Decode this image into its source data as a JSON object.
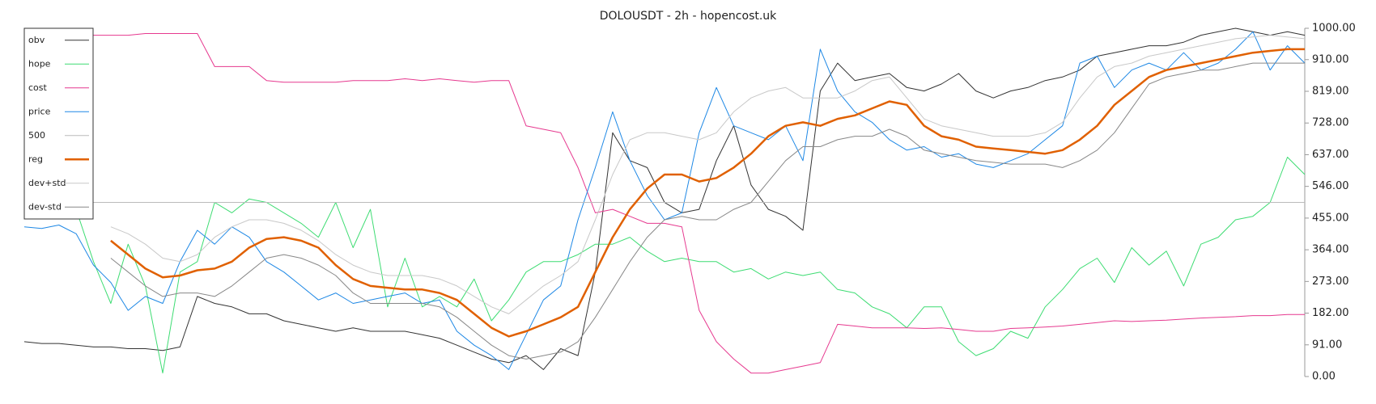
{
  "chart_data": {
    "type": "line",
    "title": "DOLOUSDT - 2h - hopencost.uk",
    "ylim": [
      0,
      1000
    ],
    "yticks": [
      {
        "value": 0,
        "label": "0.00"
      },
      {
        "value": 91,
        "label": "91.00"
      },
      {
        "value": 182,
        "label": "182.00"
      },
      {
        "value": 273,
        "label": "273.00"
      },
      {
        "value": 364,
        "label": "364.00"
      },
      {
        "value": 455,
        "label": "455.00"
      },
      {
        "value": 546,
        "label": "546.00"
      },
      {
        "value": 637,
        "label": "637.00"
      },
      {
        "value": 728,
        "label": "728.00"
      },
      {
        "value": 819,
        "label": "819.00"
      },
      {
        "value": 910,
        "label": "910.00"
      },
      {
        "value": 1000,
        "label": "1000.00"
      }
    ],
    "legend": "upper left",
    "series": [
      {
        "name": "obv",
        "color": "#333333",
        "width": 1,
        "values": [
          100,
          95,
          95,
          90,
          85,
          85,
          80,
          80,
          75,
          85,
          230,
          210,
          200,
          180,
          180,
          160,
          150,
          140,
          130,
          140,
          130,
          130,
          130,
          120,
          110,
          90,
          70,
          50,
          40,
          60,
          20,
          80,
          60,
          300,
          700,
          620,
          600,
          500,
          470,
          480,
          620,
          720,
          550,
          480,
          460,
          420,
          820,
          900,
          850,
          860,
          870,
          830,
          820,
          840,
          870,
          820,
          800,
          820,
          830,
          850,
          860,
          880,
          920,
          930,
          940,
          950,
          950,
          960,
          980,
          990,
          1000,
          990,
          980,
          990,
          980
        ]
      },
      {
        "name": "hope",
        "color": "#3ddc72",
        "width": 1,
        "values": [
          null,
          null,
          null,
          480,
          330,
          210,
          380,
          260,
          10,
          300,
          330,
          500,
          470,
          510,
          500,
          470,
          440,
          400,
          500,
          370,
          480,
          200,
          340,
          200,
          230,
          200,
          280,
          160,
          220,
          300,
          330,
          330,
          350,
          380,
          380,
          400,
          360,
          330,
          340,
          330,
          330,
          300,
          310,
          280,
          300,
          290,
          300,
          250,
          240,
          200,
          180,
          140,
          200,
          200,
          100,
          60,
          80,
          130,
          110,
          200,
          250,
          310,
          340,
          270,
          370,
          320,
          360,
          260,
          380,
          400,
          450,
          460,
          500,
          630,
          580
        ]
      },
      {
        "name": "cost",
        "color": "#e6398f",
        "width": 1,
        "values": [
          null,
          null,
          null,
          null,
          980,
          980,
          980,
          985,
          985,
          985,
          985,
          890,
          890,
          890,
          850,
          845,
          845,
          845,
          845,
          850,
          850,
          850,
          855,
          850,
          855,
          850,
          845,
          850,
          850,
          720,
          710,
          700,
          600,
          470,
          480,
          460,
          440,
          440,
          430,
          190,
          100,
          50,
          10,
          10,
          20,
          30,
          40,
          150,
          145,
          140,
          140,
          140,
          138,
          140,
          135,
          130,
          130,
          138,
          140,
          142,
          145,
          150,
          155,
          160,
          158,
          160,
          162,
          165,
          168,
          170,
          172,
          175,
          175,
          178,
          178
        ]
      },
      {
        "name": "price",
        "color": "#1e88e5",
        "width": 1,
        "values": [
          430,
          425,
          435,
          410,
          320,
          270,
          190,
          230,
          210,
          330,
          420,
          380,
          430,
          400,
          330,
          300,
          260,
          220,
          240,
          210,
          220,
          230,
          240,
          210,
          220,
          130,
          90,
          60,
          20,
          120,
          220,
          260,
          450,
          600,
          760,
          620,
          520,
          450,
          470,
          700,
          830,
          720,
          700,
          680,
          720,
          620,
          940,
          820,
          760,
          730,
          680,
          650,
          660,
          630,
          640,
          610,
          600,
          620,
          640,
          680,
          720,
          900,
          920,
          830,
          880,
          900,
          880,
          930,
          880,
          900,
          940,
          990,
          880,
          950,
          900
        ]
      },
      {
        "name": "500",
        "color": "#bbbbbb",
        "width": 1,
        "values": [
          500,
          500,
          500,
          500,
          500,
          500,
          500,
          500,
          500,
          500,
          500,
          500,
          500,
          500,
          500,
          500,
          500,
          500,
          500,
          500,
          500,
          500,
          500,
          500,
          500,
          500,
          500,
          500,
          500,
          500,
          500,
          500,
          500,
          500,
          500,
          500,
          500,
          500,
          500,
          500,
          500,
          500,
          500,
          500,
          500,
          500,
          500,
          500,
          500,
          500,
          500,
          500,
          500,
          500,
          500,
          500,
          500,
          500,
          500,
          500,
          500,
          500,
          500,
          500,
          500,
          500,
          500,
          500,
          500,
          500,
          500,
          500,
          500,
          500,
          500
        ]
      },
      {
        "name": "reg",
        "color": "#e06000",
        "width": 2.5,
        "values": [
          null,
          null,
          null,
          null,
          null,
          390,
          350,
          310,
          285,
          290,
          305,
          310,
          330,
          370,
          395,
          400,
          390,
          370,
          320,
          280,
          260,
          255,
          250,
          250,
          240,
          220,
          180,
          140,
          115,
          130,
          150,
          170,
          200,
          300,
          400,
          480,
          540,
          580,
          580,
          560,
          570,
          600,
          640,
          690,
          720,
          730,
          720,
          740,
          750,
          770,
          790,
          780,
          720,
          690,
          680,
          660,
          655,
          650,
          645,
          640,
          650,
          680,
          720,
          780,
          820,
          860,
          880,
          890,
          900,
          910,
          920,
          930,
          935,
          940,
          940
        ]
      },
      {
        "name": "dev+std",
        "color": "#c8c8c8",
        "width": 1,
        "values": [
          null,
          null,
          null,
          null,
          null,
          430,
          410,
          380,
          340,
          330,
          350,
          400,
          430,
          450,
          450,
          440,
          420,
          390,
          350,
          320,
          300,
          290,
          290,
          290,
          280,
          260,
          230,
          200,
          180,
          220,
          260,
          290,
          330,
          450,
          580,
          680,
          700,
          700,
          690,
          680,
          700,
          760,
          800,
          820,
          830,
          800,
          800,
          800,
          820,
          850,
          860,
          800,
          740,
          720,
          710,
          700,
          690,
          690,
          690,
          700,
          730,
          800,
          860,
          890,
          900,
          920,
          930,
          940,
          950,
          960,
          970,
          975,
          980,
          975,
          970
        ]
      },
      {
        "name": "dev-std",
        "color": "#888888",
        "width": 1,
        "values": [
          null,
          null,
          null,
          null,
          null,
          340,
          300,
          260,
          230,
          240,
          240,
          230,
          260,
          300,
          340,
          350,
          340,
          320,
          290,
          240,
          210,
          210,
          210,
          210,
          200,
          170,
          130,
          90,
          60,
          50,
          60,
          70,
          100,
          170,
          250,
          330,
          400,
          450,
          460,
          450,
          450,
          480,
          500,
          560,
          620,
          660,
          660,
          680,
          690,
          690,
          710,
          690,
          650,
          640,
          630,
          620,
          615,
          610,
          610,
          610,
          600,
          620,
          650,
          700,
          770,
          840,
          860,
          870,
          880,
          880,
          890,
          900,
          900,
          900,
          900
        ]
      }
    ]
  }
}
